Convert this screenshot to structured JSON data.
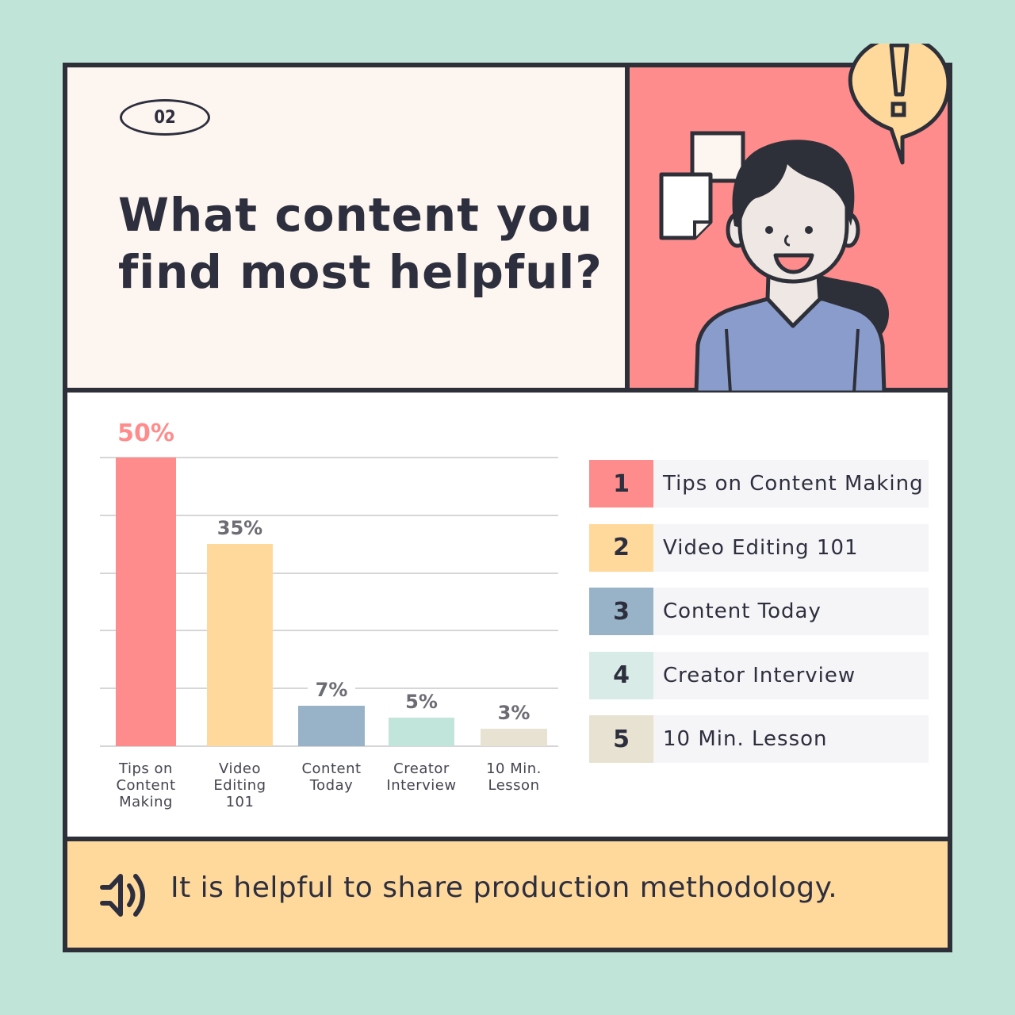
{
  "header": {
    "badge": "02",
    "title_line1": "What content you",
    "title_line2": "find most helpful?"
  },
  "illustration": {
    "speech_bubble_icon": "exclamation-icon",
    "description": "woman-smiling-with-notes"
  },
  "colors": {
    "background": "#c1e4d9",
    "frame": "#2e3039",
    "header_bg": "#fdf5ef",
    "illustration_bg": "#ff8c8c",
    "footer_bg": "#ffd99c",
    "bar1": "#ff8c8c",
    "bar2": "#ffd99c",
    "bar3": "#98b3c7",
    "bar4": "#c2e5db",
    "bar5": "#e8e2d2"
  },
  "chart_data": {
    "type": "bar",
    "title": "What content you find most helpful?",
    "categories": [
      "Tips on Content Making",
      "Video Editing 101",
      "Content Today",
      "Creator Interview",
      "10 Min. Lesson"
    ],
    "values": [
      50,
      35,
      7,
      5,
      3
    ],
    "value_labels": [
      "50%",
      "35%",
      "7%",
      "5%",
      "3%"
    ],
    "category_labels_wrapped": [
      [
        "Tips on",
        "Content",
        "Making"
      ],
      [
        "Video",
        "Editing",
        "101"
      ],
      [
        "Content",
        "Today"
      ],
      [
        "Creator",
        "Interview"
      ],
      [
        "10 Min.",
        "Lesson"
      ]
    ],
    "xlabel": "",
    "ylabel": "",
    "ylim": [
      0,
      50
    ],
    "grid": true,
    "gridlines": 6,
    "colors": [
      "#ff8c8c",
      "#ffd99c",
      "#98b3c7",
      "#c2e5db",
      "#e8e2d2"
    ]
  },
  "legend": {
    "items": [
      {
        "rank": "1",
        "label": "Tips on Content Making",
        "color": "#ff8c8c"
      },
      {
        "rank": "2",
        "label": "Video Editing 101",
        "color": "#ffd99c"
      },
      {
        "rank": "3",
        "label": "Content Today",
        "color": "#98b3c7"
      },
      {
        "rank": "4",
        "label": "Creator Interview",
        "color": "#d8ebe6"
      },
      {
        "rank": "5",
        "label": "10 Min. Lesson",
        "color": "#e8e2d2"
      }
    ]
  },
  "footer": {
    "icon": "speaker-icon",
    "note": "It is helpful to share production methodology."
  }
}
